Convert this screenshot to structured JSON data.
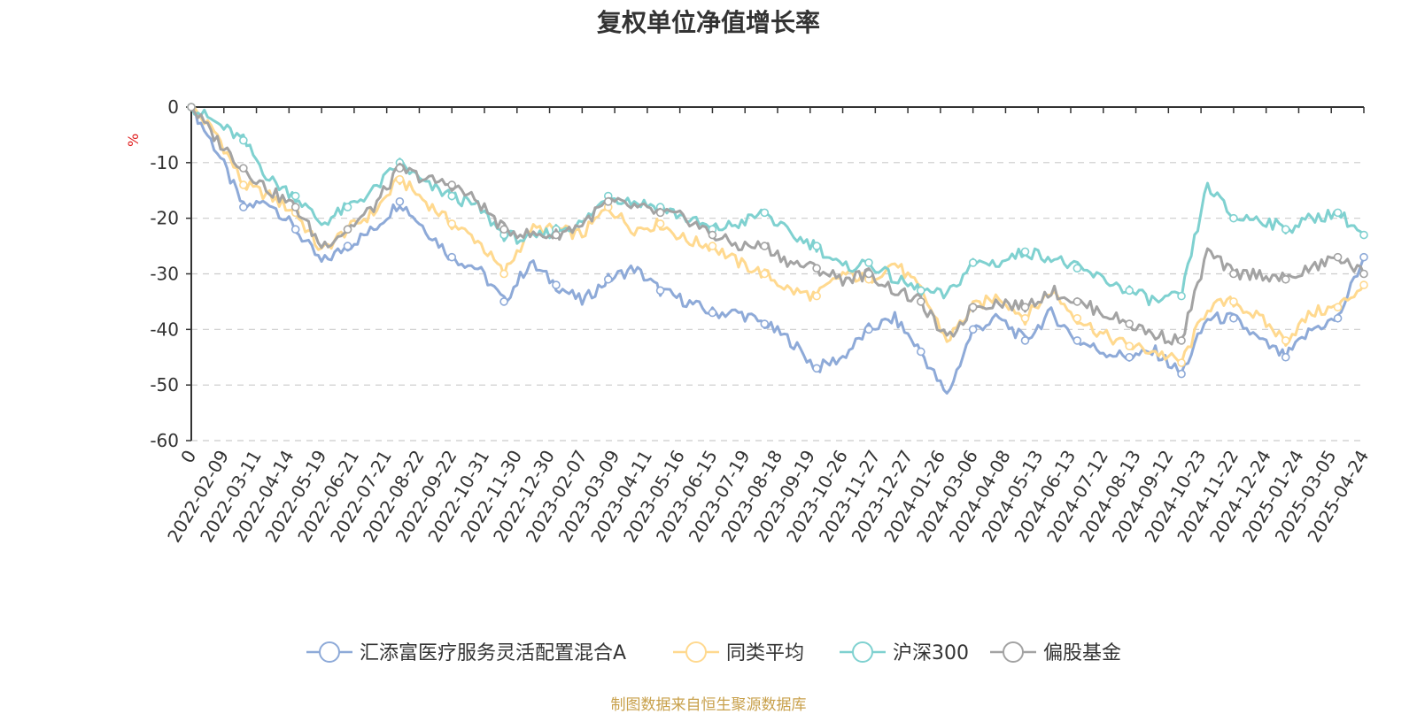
{
  "title": "复权单位净值增长率",
  "source_note": "制图数据来自恒生聚源数据库",
  "chart_data": {
    "type": "line",
    "title": "复权单位净值增长率",
    "ylabel": "%",
    "ylim": [
      -60,
      0
    ],
    "y_ticks": [
      0,
      -10,
      -20,
      -30,
      -40,
      -50,
      -60
    ],
    "grid": true,
    "legend_position": "bottom",
    "x_tick_labels": [
      "0",
      "2022-02-09",
      "2022-03-11",
      "2022-04-14",
      "2022-05-19",
      "2022-06-21",
      "2022-07-21",
      "2022-08-22",
      "2022-09-22",
      "2022-10-31",
      "2022-11-30",
      "2022-12-30",
      "2023-02-07",
      "2023-03-09",
      "2023-04-11",
      "2023-05-16",
      "2023-06-15",
      "2023-07-19",
      "2023-08-18",
      "2023-09-19",
      "2023-10-26",
      "2023-11-27",
      "2023-12-27",
      "2024-01-26",
      "2024-03-06",
      "2024-04-08",
      "2024-05-13",
      "2024-06-13",
      "2024-07-12",
      "2024-08-13",
      "2024-09-12",
      "2024-10-23",
      "2024-11-22",
      "2024-12-24",
      "2025-01-24",
      "2025-03-05",
      "2025-04-24"
    ],
    "series": [
      {
        "name": "汇添富医疗服务灵活配置混合A",
        "color": "#8eaad8",
        "values": [
          0,
          -8,
          -18,
          -17,
          -22,
          -28,
          -25,
          -22,
          -17,
          -22,
          -27,
          -29,
          -35,
          -28,
          -32,
          -35,
          -31,
          -29,
          -33,
          -35,
          -37,
          -37,
          -39,
          -42,
          -47,
          -45,
          -40,
          -38,
          -44,
          -52,
          -40,
          -38,
          -42,
          -37,
          -42,
          -44,
          -45,
          -44,
          -48,
          -38,
          -38,
          -42,
          -45,
          -40,
          -38,
          -27
        ]
      },
      {
        "name": "同类平均",
        "color": "#ffd98f",
        "values": [
          0,
          -5,
          -14,
          -16,
          -19,
          -26,
          -22,
          -19,
          -13,
          -17,
          -21,
          -24,
          -30,
          -22,
          -22,
          -23,
          -18,
          -22,
          -21,
          -24,
          -25,
          -28,
          -30,
          -33,
          -34,
          -30,
          -31,
          -28,
          -33,
          -42,
          -36,
          -34,
          -38,
          -33,
          -38,
          -41,
          -43,
          -44,
          -46,
          -36,
          -35,
          -38,
          -42,
          -37,
          -36,
          -32
        ]
      },
      {
        "name": "沪深300",
        "color": "#7fd1d0",
        "values": [
          0,
          -3,
          -6,
          -13,
          -16,
          -21,
          -18,
          -15,
          -10,
          -14,
          -16,
          -18,
          -23,
          -24,
          -22,
          -21,
          -16,
          -17,
          -18,
          -20,
          -22,
          -21,
          -19,
          -23,
          -25,
          -29,
          -28,
          -31,
          -33,
          -34,
          -28,
          -28,
          -26,
          -27,
          -29,
          -31,
          -33,
          -35,
          -34,
          -14,
          -20,
          -20,
          -22,
          -20,
          -19,
          -23
        ]
      },
      {
        "name": "偏股基金",
        "color": "#a3a3a3",
        "values": [
          0,
          -6,
          -11,
          -15,
          -18,
          -25,
          -22,
          -18,
          -11,
          -13,
          -14,
          -17,
          -22,
          -23,
          -23,
          -21,
          -17,
          -18,
          -19,
          -20,
          -23,
          -25,
          -25,
          -28,
          -29,
          -31,
          -30,
          -33,
          -35,
          -42,
          -36,
          -35,
          -36,
          -33,
          -35,
          -37,
          -39,
          -41,
          -42,
          -26,
          -30,
          -30,
          -31,
          -29,
          -27,
          -30
        ]
      }
    ]
  }
}
